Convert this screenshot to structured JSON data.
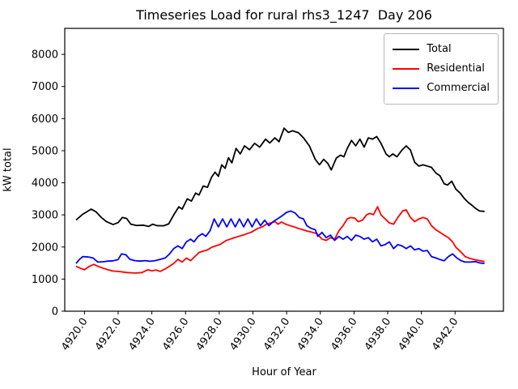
{
  "chart_data": {
    "type": "line",
    "title": "Timeseries Load for rural rhs3_1247  Day 206",
    "xlabel": "Hour of Year",
    "ylabel": "kW total",
    "xlim": [
      4918.83,
      4944.87
    ],
    "ylim": [
      0,
      8810
    ],
    "grid": false,
    "legend_position": "upper right",
    "x_ticks": [
      4920,
      4922,
      4924,
      4926,
      4928,
      4930,
      4932,
      4934,
      4936,
      4938,
      4940,
      4942
    ],
    "x_tick_labels": [
      "4920.0",
      "4922.0",
      "4924.0",
      "4926.0",
      "4928.0",
      "4930.0",
      "4932.0",
      "4934.0",
      "4936.0",
      "4938.0",
      "4940.0",
      "4942.0"
    ],
    "y_ticks": [
      0,
      1000,
      2000,
      3000,
      4000,
      5000,
      6000,
      7000,
      8000
    ],
    "y_tick_labels": [
      "0",
      "1000",
      "2000",
      "3000",
      "4000",
      "5000",
      "6000",
      "7000",
      "8000"
    ],
    "series": [
      {
        "name": "Total",
        "color": "#000000",
        "points": [
          [
            4919.5,
            2840
          ],
          [
            4919.9,
            3020
          ],
          [
            4920.4,
            3180
          ],
          [
            4920.7,
            3090
          ],
          [
            4921.0,
            2920
          ],
          [
            4921.3,
            2790
          ],
          [
            4921.7,
            2700
          ],
          [
            4922.0,
            2760
          ],
          [
            4922.25,
            2920
          ],
          [
            4922.5,
            2890
          ],
          [
            4922.75,
            2710
          ],
          [
            4923.1,
            2670
          ],
          [
            4923.5,
            2680
          ],
          [
            4923.8,
            2640
          ],
          [
            4924.05,
            2710
          ],
          [
            4924.3,
            2665
          ],
          [
            4924.7,
            2660
          ],
          [
            4925.0,
            2720
          ],
          [
            4925.3,
            3000
          ],
          [
            4925.6,
            3250
          ],
          [
            4925.8,
            3180
          ],
          [
            4926.1,
            3500
          ],
          [
            4926.35,
            3430
          ],
          [
            4926.6,
            3680
          ],
          [
            4926.8,
            3620
          ],
          [
            4927.05,
            3900
          ],
          [
            4927.3,
            3860
          ],
          [
            4927.55,
            4180
          ],
          [
            4927.75,
            4330
          ],
          [
            4927.95,
            4200
          ],
          [
            4928.15,
            4560
          ],
          [
            4928.35,
            4450
          ],
          [
            4928.55,
            4780
          ],
          [
            4928.75,
            4620
          ],
          [
            4929.0,
            5070
          ],
          [
            4929.25,
            4900
          ],
          [
            4929.5,
            5150
          ],
          [
            4929.8,
            5030
          ],
          [
            4930.1,
            5230
          ],
          [
            4930.4,
            5110
          ],
          [
            4930.75,
            5360
          ],
          [
            4931.0,
            5240
          ],
          [
            4931.3,
            5400
          ],
          [
            4931.55,
            5280
          ],
          [
            4931.85,
            5700
          ],
          [
            4932.1,
            5570
          ],
          [
            4932.35,
            5620
          ],
          [
            4932.7,
            5560
          ],
          [
            4933.0,
            5400
          ],
          [
            4933.35,
            5150
          ],
          [
            4933.7,
            4730
          ],
          [
            4933.95,
            4560
          ],
          [
            4934.2,
            4730
          ],
          [
            4934.45,
            4600
          ],
          [
            4934.65,
            4400
          ],
          [
            4934.95,
            4770
          ],
          [
            4935.2,
            4860
          ],
          [
            4935.4,
            4810
          ],
          [
            4935.6,
            5070
          ],
          [
            4935.85,
            5320
          ],
          [
            4936.1,
            5150
          ],
          [
            4936.35,
            5360
          ],
          [
            4936.6,
            5110
          ],
          [
            4936.85,
            5400
          ],
          [
            4937.1,
            5360
          ],
          [
            4937.35,
            5440
          ],
          [
            4937.6,
            5230
          ],
          [
            4937.9,
            4900
          ],
          [
            4938.1,
            4810
          ],
          [
            4938.3,
            4900
          ],
          [
            4938.55,
            4810
          ],
          [
            4938.85,
            5020
          ],
          [
            4939.1,
            5150
          ],
          [
            4939.35,
            5020
          ],
          [
            4939.6,
            4640
          ],
          [
            4939.85,
            4520
          ],
          [
            4940.1,
            4560
          ],
          [
            4940.35,
            4520
          ],
          [
            4940.6,
            4480
          ],
          [
            4940.85,
            4310
          ],
          [
            4941.1,
            4220
          ],
          [
            4941.35,
            3970
          ],
          [
            4941.55,
            3930
          ],
          [
            4941.8,
            4050
          ],
          [
            4942.05,
            3800
          ],
          [
            4942.3,
            3680
          ],
          [
            4942.55,
            3510
          ],
          [
            4942.8,
            3380
          ],
          [
            4943.0,
            3300
          ],
          [
            4943.2,
            3210
          ],
          [
            4943.45,
            3120
          ],
          [
            4943.75,
            3110
          ]
        ]
      },
      {
        "name": "Residential",
        "color": "#ff0000",
        "points": [
          [
            4919.5,
            1400
          ],
          [
            4919.75,
            1340
          ],
          [
            4920.0,
            1290
          ],
          [
            4920.3,
            1400
          ],
          [
            4920.55,
            1460
          ],
          [
            4920.8,
            1400
          ],
          [
            4921.1,
            1340
          ],
          [
            4921.4,
            1290
          ],
          [
            4921.7,
            1250
          ],
          [
            4922.0,
            1240
          ],
          [
            4922.3,
            1220
          ],
          [
            4922.6,
            1200
          ],
          [
            4923.0,
            1190
          ],
          [
            4923.4,
            1200
          ],
          [
            4923.75,
            1290
          ],
          [
            4924.0,
            1260
          ],
          [
            4924.25,
            1280
          ],
          [
            4924.5,
            1240
          ],
          [
            4924.8,
            1320
          ],
          [
            4925.05,
            1400
          ],
          [
            4925.3,
            1490
          ],
          [
            4925.55,
            1615
          ],
          [
            4925.8,
            1530
          ],
          [
            4926.05,
            1655
          ],
          [
            4926.3,
            1575
          ],
          [
            4926.55,
            1700
          ],
          [
            4926.8,
            1830
          ],
          [
            4927.05,
            1870
          ],
          [
            4927.3,
            1910
          ],
          [
            4927.55,
            1990
          ],
          [
            4927.8,
            2035
          ],
          [
            4928.05,
            2080
          ],
          [
            4928.4,
            2200
          ],
          [
            4928.65,
            2245
          ],
          [
            4928.9,
            2290
          ],
          [
            4929.15,
            2330
          ],
          [
            4929.4,
            2370
          ],
          [
            4929.65,
            2415
          ],
          [
            4929.9,
            2460
          ],
          [
            4930.3,
            2580
          ],
          [
            4930.55,
            2625
          ],
          [
            4930.8,
            2710
          ],
          [
            4931.05,
            2750
          ],
          [
            4931.3,
            2790
          ],
          [
            4931.5,
            2710
          ],
          [
            4931.7,
            2780
          ],
          [
            4931.95,
            2710
          ],
          [
            4932.2,
            2665
          ],
          [
            4932.45,
            2625
          ],
          [
            4932.7,
            2580
          ],
          [
            4932.95,
            2540
          ],
          [
            4933.2,
            2500
          ],
          [
            4933.5,
            2460
          ],
          [
            4933.8,
            2415
          ],
          [
            4934.1,
            2245
          ],
          [
            4934.35,
            2205
          ],
          [
            4934.6,
            2290
          ],
          [
            4934.85,
            2245
          ],
          [
            4935.1,
            2500
          ],
          [
            4935.35,
            2665
          ],
          [
            4935.6,
            2875
          ],
          [
            4935.8,
            2920
          ],
          [
            4936.05,
            2900
          ],
          [
            4936.25,
            2790
          ],
          [
            4936.5,
            2835
          ],
          [
            4936.75,
            3005
          ],
          [
            4936.95,
            3045
          ],
          [
            4937.15,
            3005
          ],
          [
            4937.4,
            3255
          ],
          [
            4937.6,
            3005
          ],
          [
            4937.85,
            2875
          ],
          [
            4938.1,
            2750
          ],
          [
            4938.35,
            2710
          ],
          [
            4938.6,
            2920
          ],
          [
            4938.9,
            3130
          ],
          [
            4939.1,
            3155
          ],
          [
            4939.35,
            2920
          ],
          [
            4939.6,
            2790
          ],
          [
            4939.85,
            2875
          ],
          [
            4940.1,
            2920
          ],
          [
            4940.35,
            2875
          ],
          [
            4940.6,
            2665
          ],
          [
            4940.85,
            2540
          ],
          [
            4941.1,
            2455
          ],
          [
            4941.35,
            2370
          ],
          [
            4941.6,
            2290
          ],
          [
            4941.85,
            2160
          ],
          [
            4942.05,
            1990
          ],
          [
            4942.3,
            1870
          ],
          [
            4942.6,
            1700
          ],
          [
            4942.9,
            1640
          ],
          [
            4943.2,
            1600
          ],
          [
            4943.5,
            1570
          ],
          [
            4943.75,
            1545
          ]
        ]
      },
      {
        "name": "Commercial",
        "color": "#0000ff",
        "points": [
          [
            4919.5,
            1490
          ],
          [
            4919.7,
            1610
          ],
          [
            4919.9,
            1700
          ],
          [
            4920.2,
            1690
          ],
          [
            4920.5,
            1660
          ],
          [
            4920.8,
            1530
          ],
          [
            4921.1,
            1540
          ],
          [
            4921.4,
            1560
          ],
          [
            4921.7,
            1570
          ],
          [
            4922.0,
            1610
          ],
          [
            4922.2,
            1785
          ],
          [
            4922.45,
            1760
          ],
          [
            4922.7,
            1615
          ],
          [
            4923.0,
            1575
          ],
          [
            4923.3,
            1560
          ],
          [
            4923.6,
            1575
          ],
          [
            4923.9,
            1555
          ],
          [
            4924.2,
            1575
          ],
          [
            4924.5,
            1615
          ],
          [
            4924.8,
            1660
          ],
          [
            4925.05,
            1785
          ],
          [
            4925.3,
            1950
          ],
          [
            4925.55,
            2035
          ],
          [
            4925.8,
            1950
          ],
          [
            4926.05,
            2160
          ],
          [
            4926.3,
            2245
          ],
          [
            4926.5,
            2160
          ],
          [
            4926.75,
            2330
          ],
          [
            4927.0,
            2415
          ],
          [
            4927.2,
            2330
          ],
          [
            4927.45,
            2500
          ],
          [
            4927.7,
            2875
          ],
          [
            4927.95,
            2625
          ],
          [
            4928.2,
            2875
          ],
          [
            4928.45,
            2625
          ],
          [
            4928.7,
            2875
          ],
          [
            4928.95,
            2625
          ],
          [
            4929.2,
            2875
          ],
          [
            4929.45,
            2625
          ],
          [
            4929.7,
            2875
          ],
          [
            4929.95,
            2625
          ],
          [
            4930.2,
            2875
          ],
          [
            4930.45,
            2665
          ],
          [
            4930.7,
            2835
          ],
          [
            4930.95,
            2665
          ],
          [
            4931.2,
            2790
          ],
          [
            4931.45,
            2875
          ],
          [
            4931.7,
            2960
          ],
          [
            4932.0,
            3080
          ],
          [
            4932.25,
            3120
          ],
          [
            4932.5,
            3060
          ],
          [
            4932.75,
            2920
          ],
          [
            4933.0,
            2875
          ],
          [
            4933.2,
            2665
          ],
          [
            4933.45,
            2580
          ],
          [
            4933.7,
            2540
          ],
          [
            4933.85,
            2330
          ],
          [
            4934.1,
            2455
          ],
          [
            4934.35,
            2290
          ],
          [
            4934.6,
            2370
          ],
          [
            4934.85,
            2205
          ],
          [
            4935.1,
            2330
          ],
          [
            4935.35,
            2245
          ],
          [
            4935.6,
            2330
          ],
          [
            4935.85,
            2205
          ],
          [
            4936.1,
            2370
          ],
          [
            4936.35,
            2330
          ],
          [
            4936.6,
            2245
          ],
          [
            4936.85,
            2290
          ],
          [
            4937.1,
            2160
          ],
          [
            4937.35,
            2245
          ],
          [
            4937.6,
            2035
          ],
          [
            4937.85,
            2075
          ],
          [
            4938.1,
            2160
          ],
          [
            4938.35,
            1950
          ],
          [
            4938.6,
            2075
          ],
          [
            4938.85,
            2035
          ],
          [
            4939.1,
            1950
          ],
          [
            4939.35,
            2035
          ],
          [
            4939.6,
            1910
          ],
          [
            4939.85,
            1950
          ],
          [
            4940.1,
            1870
          ],
          [
            4940.35,
            1890
          ],
          [
            4940.6,
            1700
          ],
          [
            4940.85,
            1660
          ],
          [
            4941.1,
            1610
          ],
          [
            4941.35,
            1570
          ],
          [
            4941.6,
            1700
          ],
          [
            4941.85,
            1785
          ],
          [
            4942.1,
            1660
          ],
          [
            4942.35,
            1575
          ],
          [
            4942.6,
            1530
          ],
          [
            4942.9,
            1530
          ],
          [
            4943.2,
            1545
          ],
          [
            4943.5,
            1500
          ],
          [
            4943.75,
            1490
          ]
        ]
      }
    ]
  }
}
